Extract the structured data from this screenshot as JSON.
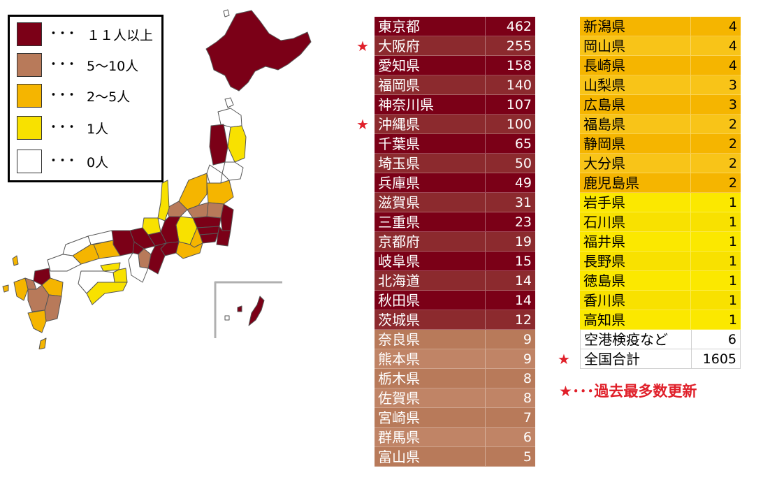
{
  "legend": {
    "title": "",
    "dots": "･･･",
    "items": [
      {
        "label": "１１人以上",
        "color": "#7b0017"
      },
      {
        "label": "5～10人",
        "color": "#b87a5a"
      },
      {
        "label": "2～5人",
        "color": "#f5b500"
      },
      {
        "label": "1人",
        "color": "#f8e100"
      },
      {
        "label": "0人",
        "color": "#ffffff"
      }
    ]
  },
  "colors": {
    "dark_red": "#7b0017",
    "dark_red_alt": "#8c2a2e",
    "brown": "#b87a5a",
    "brown_alt": "#c08466",
    "orange": "#f5b500",
    "orange_alt": "#f8c418",
    "yellow": "#f8e100",
    "yellow_alt": "#fbe800",
    "white": "#ffffff",
    "star_red": "#e0202a"
  },
  "table_left": [
    {
      "pref": "東京都",
      "count": "462",
      "tier": "red",
      "star": false
    },
    {
      "pref": "大阪府",
      "count": "255",
      "tier": "red",
      "star": true
    },
    {
      "pref": "愛知県",
      "count": "158",
      "tier": "red",
      "star": false
    },
    {
      "pref": "福岡県",
      "count": "140",
      "tier": "red",
      "star": false
    },
    {
      "pref": "神奈川県",
      "count": "107",
      "tier": "red",
      "star": false
    },
    {
      "pref": "沖縄県",
      "count": "100",
      "tier": "red",
      "star": true
    },
    {
      "pref": "千葉県",
      "count": "65",
      "tier": "red",
      "star": false
    },
    {
      "pref": "埼玉県",
      "count": "50",
      "tier": "red",
      "star": false
    },
    {
      "pref": "兵庫県",
      "count": "49",
      "tier": "red",
      "star": false
    },
    {
      "pref": "滋賀県",
      "count": "31",
      "tier": "red",
      "star": false
    },
    {
      "pref": "三重県",
      "count": "23",
      "tier": "red",
      "star": false
    },
    {
      "pref": "京都府",
      "count": "19",
      "tier": "red",
      "star": false
    },
    {
      "pref": "岐阜県",
      "count": "15",
      "tier": "red",
      "star": false
    },
    {
      "pref": "北海道",
      "count": "14",
      "tier": "red",
      "star": false
    },
    {
      "pref": "秋田県",
      "count": "14",
      "tier": "red",
      "star": false
    },
    {
      "pref": "茨城県",
      "count": "12",
      "tier": "red",
      "star": false
    },
    {
      "pref": "奈良県",
      "count": "9",
      "tier": "brown",
      "star": false
    },
    {
      "pref": "熊本県",
      "count": "9",
      "tier": "brown",
      "star": false
    },
    {
      "pref": "栃木県",
      "count": "8",
      "tier": "brown",
      "star": false
    },
    {
      "pref": "佐賀県",
      "count": "8",
      "tier": "brown",
      "star": false
    },
    {
      "pref": "宮崎県",
      "count": "7",
      "tier": "brown",
      "star": false
    },
    {
      "pref": "群馬県",
      "count": "6",
      "tier": "brown",
      "star": false
    },
    {
      "pref": "富山県",
      "count": "5",
      "tier": "brown",
      "star": false
    }
  ],
  "table_right": [
    {
      "pref": "新潟県",
      "count": "4",
      "tier": "orange",
      "star": false
    },
    {
      "pref": "岡山県",
      "count": "4",
      "tier": "orange",
      "star": false
    },
    {
      "pref": "長崎県",
      "count": "4",
      "tier": "orange",
      "star": false
    },
    {
      "pref": "山梨県",
      "count": "3",
      "tier": "orange",
      "star": false
    },
    {
      "pref": "広島県",
      "count": "3",
      "tier": "orange",
      "star": false
    },
    {
      "pref": "福島県",
      "count": "2",
      "tier": "orange",
      "star": false
    },
    {
      "pref": "静岡県",
      "count": "2",
      "tier": "orange",
      "star": false
    },
    {
      "pref": "大分県",
      "count": "2",
      "tier": "orange",
      "star": false
    },
    {
      "pref": "鹿児島県",
      "count": "2",
      "tier": "orange",
      "star": false
    },
    {
      "pref": "岩手県",
      "count": "1",
      "tier": "yellow",
      "star": false
    },
    {
      "pref": "石川県",
      "count": "1",
      "tier": "yellow",
      "star": false
    },
    {
      "pref": "福井県",
      "count": "1",
      "tier": "yellow",
      "star": false
    },
    {
      "pref": "長野県",
      "count": "1",
      "tier": "yellow",
      "star": false
    },
    {
      "pref": "徳島県",
      "count": "1",
      "tier": "yellow",
      "star": false
    },
    {
      "pref": "香川県",
      "count": "1",
      "tier": "yellow",
      "star": false
    },
    {
      "pref": "高知県",
      "count": "1",
      "tier": "yellow",
      "star": false
    },
    {
      "pref": "空港検疫など",
      "count": "6",
      "tier": "white",
      "star": false
    },
    {
      "pref": "全国合計",
      "count": "1605",
      "tier": "white",
      "star": true
    }
  ],
  "note": {
    "star": "★",
    "text": "･･･過去最多数更新"
  },
  "star_glyph": "★"
}
